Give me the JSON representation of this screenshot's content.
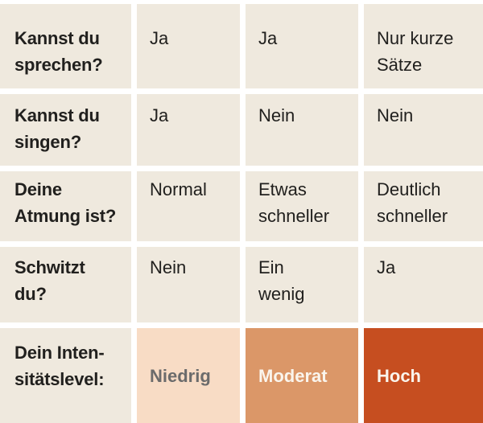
{
  "table": {
    "rows": [
      {
        "question": "Kannst du\nsprechen?",
        "answers": [
          "Ja",
          "Ja",
          "Nur kurze\nSätze"
        ]
      },
      {
        "question": "Kannst du\nsingen?",
        "answers": [
          "Ja",
          "Nein",
          "Nein"
        ]
      },
      {
        "question": "Deine\nAtmung ist?",
        "answers": [
          "Normal",
          "Etwas\nschneller",
          "Deutlich\nschneller"
        ]
      },
      {
        "question": "Schwitzt\ndu?",
        "answers": [
          "Nein",
          "Ein\nwenig",
          "Ja"
        ]
      }
    ],
    "intensity": {
      "label": "Dein Inten-\nsitätslevel:",
      "levels": [
        {
          "name": "Niedrig",
          "bg": "#F8DCC5",
          "fg": "#6B6B6B"
        },
        {
          "name": "Moderat",
          "bg": "#DB9768",
          "fg": "#FAF5ED"
        },
        {
          "name": "Hoch",
          "bg": "#C64E20",
          "fg": "#FAF5ED"
        }
      ]
    }
  },
  "colors": {
    "cell_background": "#EFE9DE",
    "grid_gap": "#FFFFFF",
    "text_dark": "#21201E"
  },
  "chart_data": {
    "type": "table",
    "title": "Dein Intensitätslevel",
    "rows": [
      [
        "Kannst du sprechen?",
        "Ja",
        "Ja",
        "Nur kurze Sätze"
      ],
      [
        "Kannst du singen?",
        "Ja",
        "Nein",
        "Nein"
      ],
      [
        "Deine Atmung ist?",
        "Normal",
        "Etwas schneller",
        "Deutlich schneller"
      ],
      [
        "Schwitzt du?",
        "Nein",
        "Ein wenig",
        "Ja"
      ],
      [
        "Dein Intensitätslevel:",
        "Niedrig",
        "Moderat",
        "Hoch"
      ]
    ],
    "legend": [
      {
        "label": "Niedrig",
        "color": "#F8DCC5"
      },
      {
        "label": "Moderat",
        "color": "#DB9768"
      },
      {
        "label": "Hoch",
        "color": "#C64E20"
      }
    ]
  }
}
